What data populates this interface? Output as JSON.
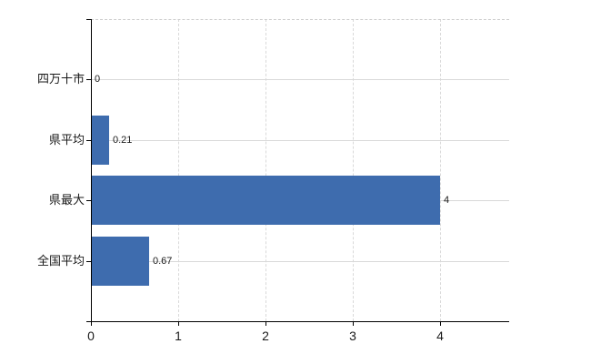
{
  "page": {
    "background": "#ffffff"
  },
  "chart_data": {
    "type": "bar",
    "orientation": "horizontal",
    "title": "",
    "categories": [
      "四万十市",
      "県平均",
      "県最大",
      "全国平均"
    ],
    "values": [
      0,
      0.21,
      4,
      0.67
    ],
    "value_labels": [
      "0",
      "0.21",
      "4",
      "0.67"
    ],
    "xlabel": "",
    "ylabel": "",
    "x_ticks": [
      0,
      1,
      2,
      3,
      4
    ],
    "x_tick_labels": [
      "0",
      "1",
      "2",
      "3",
      "4"
    ],
    "xlim": [
      0,
      4.79
    ],
    "grid": {
      "vertical": "dashed",
      "horizontal": "solid"
    },
    "legend": "none",
    "colors": {
      "bar": "#3e6cae",
      "axis": "#000000",
      "gridline": "#d9d9d9",
      "plot_border_top": "#cccccc",
      "text": "#1a1a1a",
      "background": "#ffffff"
    }
  }
}
